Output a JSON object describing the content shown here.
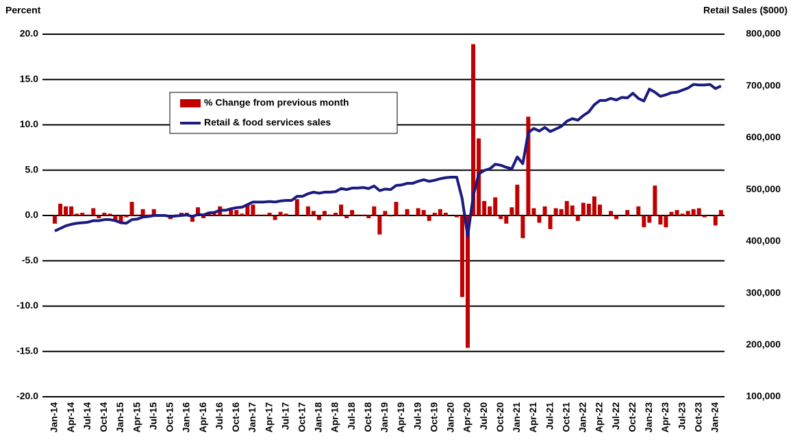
{
  "chart_data": {
    "type": "combo",
    "y_label": "Percent",
    "y2_label": "Retail Sales ($000)",
    "categories": [
      "Jan-14",
      null,
      null,
      "Apr-14",
      null,
      null,
      "Jul-14",
      null,
      null,
      "Oct-14",
      null,
      null,
      "Jan-15",
      null,
      null,
      "Apr-15",
      null,
      null,
      "Jul-15",
      null,
      null,
      "Oct-15",
      null,
      null,
      "Jan-16",
      null,
      null,
      "Apr-16",
      null,
      null,
      "Jul-16",
      null,
      null,
      "Oct-16",
      null,
      null,
      "Jan-17",
      null,
      null,
      "Apr-17",
      null,
      null,
      "Jul-17",
      null,
      null,
      "Oct-17",
      null,
      null,
      "Jan-18",
      null,
      null,
      "Apr-18",
      null,
      null,
      "Jul-18",
      null,
      null,
      "Oct-18",
      null,
      null,
      "Jan-19",
      null,
      null,
      "Apr-19",
      null,
      null,
      "Jul-19",
      null,
      null,
      "Oct-19",
      null,
      null,
      "Jan-20",
      null,
      null,
      "Apr-20",
      null,
      null,
      "Jul-20",
      null,
      null,
      "Oct-20",
      null,
      null,
      "Jan-21",
      null,
      null,
      "Apr-21",
      null,
      null,
      "Jul-21",
      null,
      null,
      "Oct-21",
      null,
      null,
      "Jan-22",
      null,
      null,
      "Apr-22",
      null,
      null,
      "Jul-22",
      null,
      null,
      "Oct-22",
      null,
      null,
      "Jan-23",
      null,
      null,
      "Apr-23",
      null,
      null,
      "Jul-23",
      null,
      null,
      "Oct-23",
      null,
      null,
      "Jan-24",
      null
    ],
    "series": [
      {
        "name": "% Change from previous month",
        "type": "bar",
        "color": "#c00000",
        "values": [
          -0.9,
          1.3,
          1.0,
          1.0,
          0.2,
          0.3,
          0.1,
          0.8,
          -0.3,
          0.3,
          0.2,
          -0.6,
          -0.8,
          -0.2,
          1.5,
          0.1,
          0.7,
          0.1,
          0.7,
          0.1,
          0.0,
          -0.4,
          0.1,
          0.3,
          0.3,
          -0.7,
          0.9,
          -0.3,
          0.4,
          0.2,
          1.0,
          0.1,
          0.6,
          0.6,
          0.2,
          1.2,
          1.2,
          0.1,
          0.1,
          0.3,
          -0.5,
          0.4,
          0.2,
          0.0,
          1.8,
          0.0,
          1.0,
          0.5,
          -0.5,
          0.5,
          0.1,
          0.3,
          1.2,
          -0.3,
          0.6,
          0.1,
          0.1,
          -0.3,
          1.0,
          -2.1,
          0.5,
          -0.1,
          1.5,
          0.1,
          0.7,
          0.0,
          0.8,
          0.6,
          -0.6,
          0.3,
          0.7,
          0.3,
          0.0,
          -0.2,
          -9.0,
          -14.6,
          18.9,
          8.5,
          1.6,
          1.0,
          2.0,
          -0.4,
          -0.9,
          0.9,
          3.4,
          -2.5,
          10.9,
          0.8,
          -0.8,
          1.0,
          -1.5,
          0.8,
          0.7,
          1.6,
          1.1,
          -0.6,
          1.4,
          1.3,
          2.1,
          1.2,
          0.0,
          0.5,
          -0.4,
          0.0,
          0.6,
          0.0,
          1.0,
          -1.3,
          -0.8,
          3.3,
          -1.0,
          -1.3,
          0.4,
          0.6,
          0.2,
          0.5,
          0.7,
          0.8,
          -0.2,
          0.0,
          -1.1,
          0.6
        ]
      },
      {
        "name": "Retail & food services sales",
        "type": "line",
        "axis": "y2",
        "color": "#1a1a80",
        "values": [
          420000,
          425000,
          430000,
          433000,
          435000,
          436000,
          437000,
          440000,
          440000,
          442000,
          442000,
          440000,
          436000,
          435000,
          442000,
          443000,
          447000,
          448000,
          450000,
          450000,
          450000,
          448000,
          449000,
          450000,
          451000,
          448000,
          452000,
          451000,
          455000,
          456000,
          460000,
          460000,
          463000,
          465000,
          466000,
          471000,
          476000,
          476000,
          476000,
          477000,
          476000,
          478000,
          479000,
          479000,
          487000,
          487000,
          492000,
          495000,
          493000,
          495000,
          495000,
          496000,
          502000,
          500000,
          503000,
          503000,
          504000,
          502000,
          507000,
          498000,
          501000,
          500000,
          508000,
          509000,
          512000,
          512000,
          516000,
          519000,
          516000,
          518000,
          521000,
          523000,
          524000,
          524000,
          482000,
          410000,
          488000,
          530000,
          537000,
          540000,
          549000,
          547000,
          543000,
          540000,
          563000,
          550000,
          610000,
          618000,
          613000,
          620000,
          612000,
          617000,
          622000,
          632000,
          637000,
          634000,
          643000,
          650000,
          664000,
          672000,
          672000,
          676000,
          673000,
          678000,
          677000,
          686000,
          676000,
          671000,
          694000,
          688000,
          680000,
          683000,
          687000,
          688000,
          692000,
          696000,
          703000,
          702000,
          702000,
          703000,
          695000,
          700000
        ]
      }
    ],
    "ylim": [
      -20,
      20
    ],
    "yticks": [
      {
        "value": -20,
        "label": "-20.0"
      },
      {
        "value": -15,
        "label": "-15.0"
      },
      {
        "value": -10,
        "label": "-10.0"
      },
      {
        "value": -5,
        "label": "-5.0"
      },
      {
        "value": 0,
        "label": "0.0"
      },
      {
        "value": 5,
        "label": "5.0"
      },
      {
        "value": 10,
        "label": "10.0"
      },
      {
        "value": 15,
        "label": "15.0"
      },
      {
        "value": 20,
        "label": "20.0"
      }
    ],
    "y2lim": [
      100000,
      800000
    ],
    "y2ticks": [
      {
        "value": 100000,
        "label": "100,000"
      },
      {
        "value": 200000,
        "label": "200,000"
      },
      {
        "value": 300000,
        "label": "300,000"
      },
      {
        "value": 400000,
        "label": "400,000"
      },
      {
        "value": 500000,
        "label": "500,000"
      },
      {
        "value": 600000,
        "label": "600,000"
      },
      {
        "value": 700000,
        "label": "700,000"
      },
      {
        "value": 800000,
        "label": "800,000"
      }
    ],
    "grid": true,
    "legend": "upper left"
  }
}
